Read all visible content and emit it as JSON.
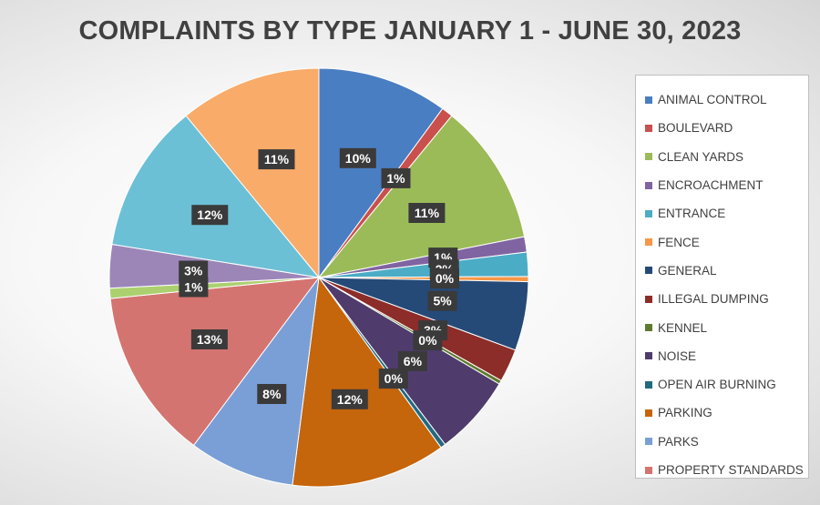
{
  "chart_data": {
    "type": "pie",
    "title": "COMPLAINTS BY TYPE JANUARY 1 - JUNE 30, 2023",
    "legend_position": "right",
    "slices": [
      {
        "name": "ANIMAL CONTROL",
        "value": 10.2,
        "label": "10%",
        "color": "#4a7ec2"
      },
      {
        "name": "BOULEVARD",
        "value": 0.9,
        "label": "1%",
        "color": "#c9504c"
      },
      {
        "name": "CLEAN YARDS",
        "value": 11.1,
        "label": "11%",
        "color": "#9bbb59"
      },
      {
        "name": "ENCROACHMENT",
        "value": 1.2,
        "label": "1%",
        "color": "#8064a2"
      },
      {
        "name": "ENTRANCE",
        "value": 1.9,
        "label": "2%",
        "color": "#4bacc6"
      },
      {
        "name": "FENCE",
        "value": 0.4,
        "label": "0%",
        "color": "#f79646"
      },
      {
        "name": "GENERAL",
        "value": 5.4,
        "label": "5%",
        "color": "#254a78"
      },
      {
        "name": "ILLEGAL DUMPING",
        "value": 2.6,
        "label": "3%",
        "color": "#8c2d2a"
      },
      {
        "name": "KENNEL",
        "value": 0.3,
        "label": "0%",
        "color": "#5e7a30"
      },
      {
        "name": "NOISE",
        "value": 6.3,
        "label": "6%",
        "color": "#4f3c6d"
      },
      {
        "name": "OPEN AIR BURNING",
        "value": 0.4,
        "label": "0%",
        "color": "#216a80"
      },
      {
        "name": "PARKING",
        "value": 12.1,
        "label": "12%",
        "color": "#c5650c"
      },
      {
        "name": "PARKS",
        "value": 8.3,
        "label": "8%",
        "color": "#7a9fd6"
      },
      {
        "name": "PROPERTY STANDARDS",
        "value": 13.4,
        "label": "13%",
        "color": "#d47470"
      },
      {
        "name": "",
        "value": 0.8,
        "label": "1%",
        "color": "#acd06f"
      },
      {
        "name": "",
        "value": 3.4,
        "label": "3%",
        "color": "#9c86b8"
      },
      {
        "name": "",
        "value": 11.7,
        "label": "12%",
        "color": "#6cc0d6"
      },
      {
        "name": "",
        "value": 11.1,
        "label": "11%",
        "color": "#f9ab6a"
      }
    ]
  }
}
